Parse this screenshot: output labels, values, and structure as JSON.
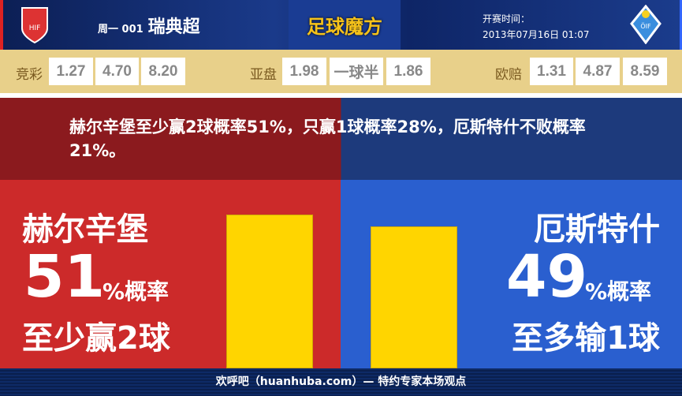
{
  "header": {
    "match_no": "周一 001",
    "league": "瑞典超",
    "brand": "足球魔方",
    "time_label": "开赛时间：",
    "time_value": "2013年07月16日 01:07",
    "home_logo_text": "HIF",
    "away_logo_text": "ÖIF"
  },
  "odds": {
    "jc_label": "竞彩",
    "jc": [
      "1.27",
      "4.70",
      "8.20"
    ],
    "yp_label": "亚盘",
    "yp": [
      "1.98",
      "一球半",
      "1.86"
    ],
    "op_label": "欧赔",
    "op": [
      "1.31",
      "4.87",
      "8.59"
    ]
  },
  "summary": "赫尔辛堡至少赢2球概率51%，只赢1球概率28%，厄斯特什不败概率21%。",
  "home": {
    "name": "赫尔辛堡",
    "pct": "51",
    "pct_suffix": "%概率",
    "desc": "至少赢2球",
    "color": "#cc2a2a"
  },
  "away": {
    "name": "厄斯特什",
    "pct": "49",
    "pct_suffix": "%概率",
    "desc": "至多输1球",
    "color": "#2a5fcf"
  },
  "bars": {
    "home_percent": 51,
    "away_percent": 49,
    "color": "#ffd500"
  },
  "footer": "欢呼吧（huanhuba.com）— 特约专家本场观点"
}
